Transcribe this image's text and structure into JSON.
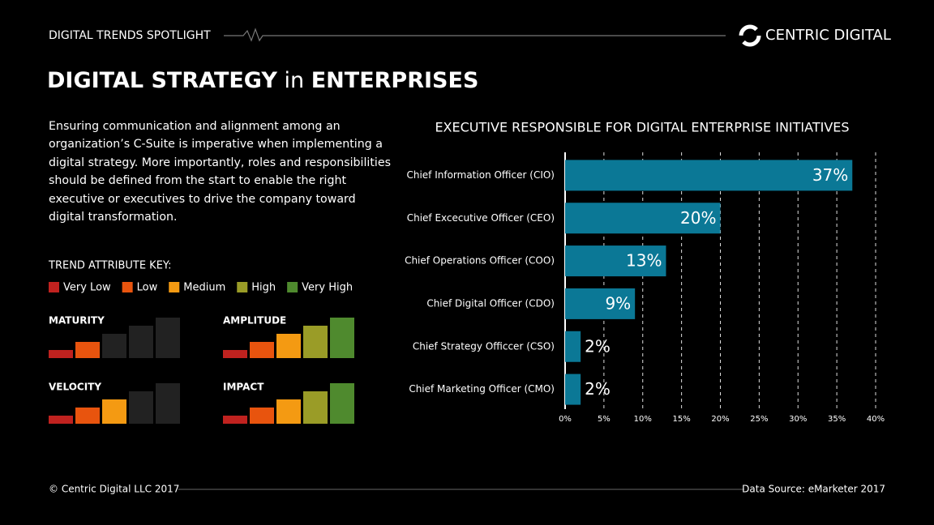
{
  "header": {
    "kicker": "DIGITAL TRENDS SPOTLIGHT",
    "brand": "CENTRIC DIGITAL",
    "title_parts": [
      "DIGITAL STRATEGY",
      "in",
      "ENTERPRISES"
    ]
  },
  "description": "Ensuring communication and alignment among an organization’s C-Suite is imperative when implementing a digital strategy. More importantly, roles and responsibilities should be defined from the start to enable the right executive or executives to drive the company toward digital transformation.",
  "trend_key": {
    "title": "TREND ATTRIBUTE KEY:",
    "levels": [
      {
        "label": "Very Low",
        "color": "#c0221f"
      },
      {
        "label": "Low",
        "color": "#e8540e"
      },
      {
        "label": "Medium",
        "color": "#f49a12"
      },
      {
        "label": "High",
        "color": "#9a9c27"
      },
      {
        "label": "Very High",
        "color": "#4f8a2e"
      }
    ]
  },
  "meters": [
    {
      "label": "MATURITY",
      "level": 2
    },
    {
      "label": "AMPLITUDE",
      "level": 5
    },
    {
      "label": "VELOCITY",
      "level": 3
    },
    {
      "label": "IMPACT",
      "level": 5
    }
  ],
  "chart_data": {
    "type": "hbar",
    "title": "EXECUTIVE RESPONSIBLE FOR DIGITAL ENTERPRISE INITIATIVES",
    "categories": [
      "Chief Information Officer (CIO)",
      "Chief Excecutive Officer (CEO)",
      "Chief Operations Officer (COO)",
      "Chief Digital Officer (CDO)",
      "Chief Strategy Officcer (CSO)",
      "Chief Marketing Officer (CMO)"
    ],
    "values": [
      37,
      20,
      13,
      9,
      2,
      2
    ],
    "value_labels": [
      "37%",
      "20%",
      "13%",
      "9%",
      "2%",
      "2%"
    ],
    "color": "#0b7896",
    "xlim": [
      0,
      40
    ],
    "xticks": [
      {
        "value": 0,
        "label": "0%"
      },
      {
        "value": 5,
        "label": "5%"
      },
      {
        "value": 10,
        "label": "10%"
      },
      {
        "value": 15,
        "label": "15%"
      },
      {
        "value": 20,
        "label": "20%"
      },
      {
        "value": 25,
        "label": "25%"
      },
      {
        "value": 30,
        "label": "30%"
      },
      {
        "value": 35,
        "label": "35%"
      },
      {
        "value": 40,
        "label": "40%"
      }
    ],
    "grid": true
  },
  "footer": {
    "copyright": "© Centric Digital LLC 2017",
    "source": "Data Source: eMarketer 2017"
  }
}
